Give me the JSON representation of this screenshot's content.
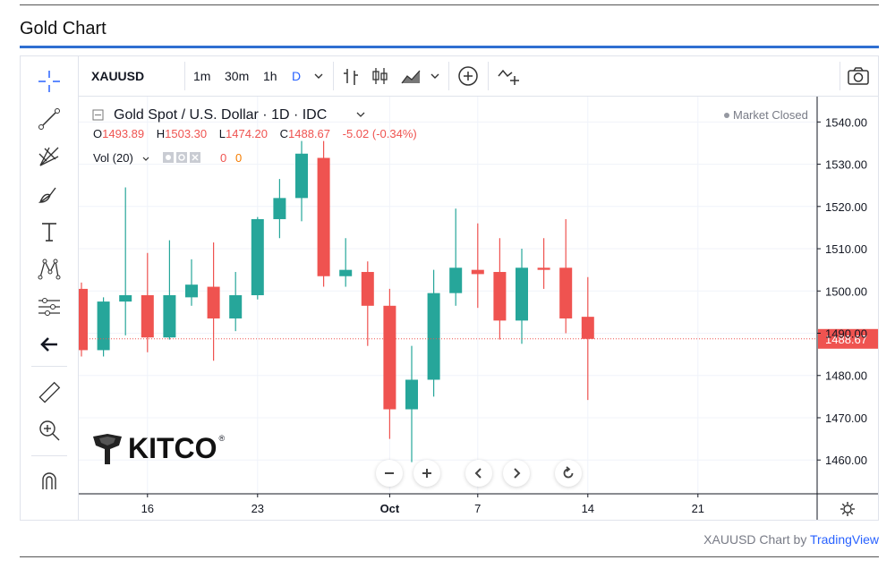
{
  "page": {
    "title": "Gold Chart",
    "attribution_prefix": "XAUUSD Chart by ",
    "attribution_link": "TradingView"
  },
  "toolbar": {
    "symbol": "XAUUSD",
    "intervals": [
      "1m",
      "30m",
      "1h",
      "D"
    ],
    "active_interval": "D"
  },
  "legend": {
    "title": "Gold Spot / U.S. Dollar · 1D · IDC",
    "open_label": "O",
    "open": "1493.89",
    "high_label": "H",
    "high": "1503.30",
    "low_label": "L",
    "low": "1474.20",
    "close_label": "C",
    "close": "1488.67",
    "change": "-5.02 (-0.34%)",
    "vol_label": "Vol (20)",
    "vol_1": "0",
    "vol_2": "0",
    "market_status": "Market Closed"
  },
  "logo": {
    "text": "KITCO",
    "reg": "®"
  },
  "colors": {
    "up": "#26a69a",
    "down": "#ef5350",
    "accent": "#2962ff",
    "last_price_line": "#ef5350"
  },
  "icons": {
    "left_toolbar": [
      "crosshair-icon",
      "trend-line-icon",
      "fib-icon",
      "brush-icon",
      "text-icon",
      "pattern-icon",
      "prediction-icon",
      "back-arrow-icon",
      "ruler-icon",
      "zoom-icon",
      "magnet-icon"
    ],
    "top_toolbar": [
      "bar-style-icon",
      "candle-style-icon",
      "area-style-icon",
      "chevron-down-icon",
      "add-indicator-icon",
      "compare-icon",
      "camera-icon"
    ],
    "nav": [
      "zoom-out-icon",
      "zoom-in-icon",
      "scroll-left-icon",
      "scroll-right-icon",
      "reset-icon"
    ],
    "settings": "gear-icon"
  },
  "chart_data": {
    "type": "candlestick",
    "title": "Gold Spot / U.S. Dollar · 1D · IDC",
    "ylim": [
      1452,
      1546
    ],
    "y_ticks": [
      "1460.00",
      "1470.00",
      "1480.00",
      "1490.00",
      "1500.00",
      "1510.00",
      "1520.00",
      "1530.00",
      "1540.00"
    ],
    "y_tick_values": [
      1460,
      1470,
      1480,
      1490,
      1500,
      1510,
      1520,
      1530,
      1540
    ],
    "x_tick_labels": [
      "16",
      "23",
      "Oct",
      "7",
      "14",
      "21"
    ],
    "x_tick_index": [
      3,
      8,
      14,
      18,
      23,
      28
    ],
    "last_price": 1488.67,
    "last_price_label": "1488.67",
    "grid": true,
    "candles": [
      {
        "date": "Sep 11",
        "o": 1500.5,
        "h": 1502.0,
        "l": 1484.5,
        "c": 1486.0
      },
      {
        "date": "Sep 12",
        "o": 1486.0,
        "h": 1498.5,
        "l": 1484.5,
        "c": 1497.5
      },
      {
        "date": "Sep 13",
        "o": 1497.5,
        "h": 1524.5,
        "l": 1489.5,
        "c": 1499.0
      },
      {
        "date": "Sep 16",
        "o": 1499.0,
        "h": 1509.0,
        "l": 1485.5,
        "c": 1489.0
      },
      {
        "date": "Sep 17",
        "o": 1489.0,
        "h": 1512.0,
        "l": 1488.5,
        "c": 1499.0
      },
      {
        "date": "Sep 18",
        "o": 1498.5,
        "h": 1507.5,
        "l": 1496.5,
        "c": 1501.5
      },
      {
        "date": "Sep 19",
        "o": 1501.0,
        "h": 1511.5,
        "l": 1483.5,
        "c": 1493.5
      },
      {
        "date": "Sep 20",
        "o": 1493.5,
        "h": 1504.5,
        "l": 1490.5,
        "c": 1499.0
      },
      {
        "date": "Sep 23",
        "o": 1499.0,
        "h": 1517.5,
        "l": 1498.0,
        "c": 1517.0
      },
      {
        "date": "Sep 24",
        "o": 1517.0,
        "h": 1526.5,
        "l": 1512.5,
        "c": 1522.0
      },
      {
        "date": "Sep 25",
        "o": 1522.0,
        "h": 1535.5,
        "l": 1516.5,
        "c": 1532.5
      },
      {
        "date": "Sep 26",
        "o": 1531.5,
        "h": 1535.5,
        "l": 1501.0,
        "c": 1503.5
      },
      {
        "date": "Sep 27",
        "o": 1503.5,
        "h": 1512.5,
        "l": 1501.0,
        "c": 1505.0
      },
      {
        "date": "Sep 30",
        "o": 1504.5,
        "h": 1507.0,
        "l": 1487.0,
        "c": 1496.5
      },
      {
        "date": "Oct 1",
        "o": 1496.5,
        "h": 1500.5,
        "l": 1465.0,
        "c": 1472.0
      },
      {
        "date": "Oct 2",
        "o": 1472.0,
        "h": 1487.0,
        "l": 1459.5,
        "c": 1479.0
      },
      {
        "date": "Oct 3",
        "o": 1479.0,
        "h": 1505.0,
        "l": 1475.0,
        "c": 1499.5
      },
      {
        "date": "Oct 4",
        "o": 1499.5,
        "h": 1519.5,
        "l": 1496.5,
        "c": 1505.5
      },
      {
        "date": "Oct 7",
        "o": 1505.0,
        "h": 1516.0,
        "l": 1496.0,
        "c": 1504.0
      },
      {
        "date": "Oct 8",
        "o": 1504.5,
        "h": 1512.5,
        "l": 1488.5,
        "c": 1493.0
      },
      {
        "date": "Oct 9",
        "o": 1493.0,
        "h": 1510.0,
        "l": 1487.5,
        "c": 1505.5
      },
      {
        "date": "Oct 10",
        "o": 1505.5,
        "h": 1512.5,
        "l": 1500.5,
        "c": 1505.0
      },
      {
        "date": "Oct 11",
        "o": 1505.5,
        "h": 1517.0,
        "l": 1490.0,
        "c": 1493.5
      },
      {
        "date": "Oct 14",
        "o": 1493.89,
        "h": 1503.3,
        "l": 1474.2,
        "c": 1488.67
      }
    ]
  }
}
